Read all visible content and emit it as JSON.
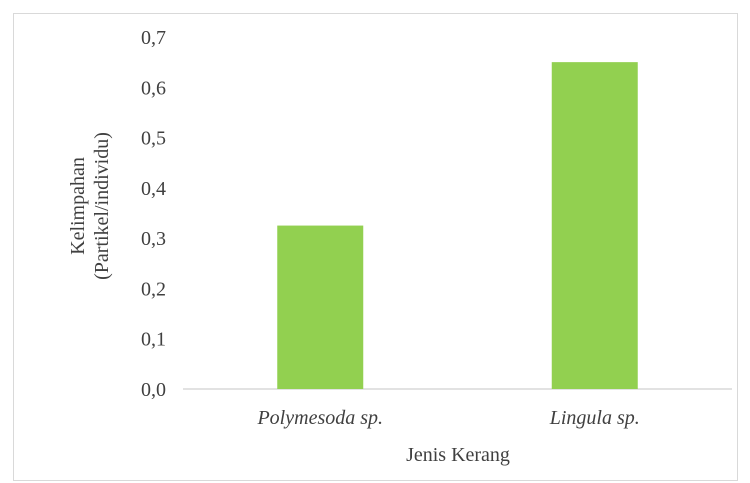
{
  "chart_data": {
    "type": "bar",
    "categories": [
      "Polymesoda sp.",
      "Lingula sp."
    ],
    "values": [
      0.325,
      0.65
    ],
    "xlabel": "Jenis Kerang",
    "ylabel_lines": [
      "Kelimpahan",
      "(Partikel/individu)"
    ],
    "ylim": [
      0,
      0.7
    ],
    "yticks": [
      "0,0",
      "0,1",
      "0,2",
      "0,3",
      "0,4",
      "0,5",
      "0,6",
      "0,7"
    ],
    "bar_color": "#92d050",
    "grid": false
  }
}
